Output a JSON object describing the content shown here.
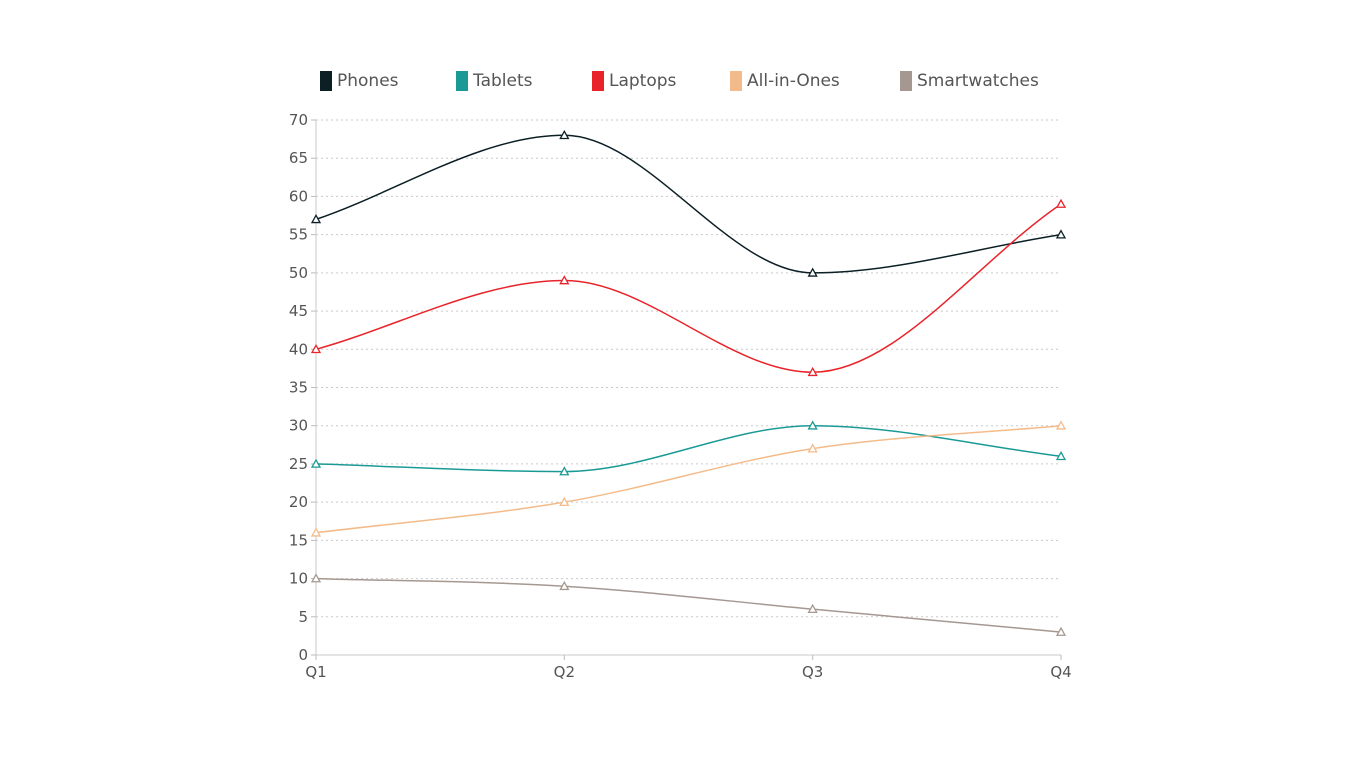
{
  "chart_data": {
    "type": "line",
    "categories": [
      "Q1",
      "Q2",
      "Q3",
      "Q4"
    ],
    "ylim": [
      0,
      70
    ],
    "yticks": [
      0,
      5,
      10,
      15,
      20,
      25,
      30,
      35,
      40,
      45,
      50,
      55,
      60,
      65,
      70
    ],
    "grid": true,
    "legend_position": "top",
    "marker": "triangle",
    "curve": "smooth",
    "series": [
      {
        "name": "Phones",
        "color": "#0b1f24",
        "values": [
          57,
          68,
          50,
          55
        ]
      },
      {
        "name": "Tablets",
        "color": "#1a9a96",
        "values": [
          25,
          24,
          30,
          26
        ]
      },
      {
        "name": "Laptops",
        "color": "#e8242a",
        "values": [
          40,
          49,
          37,
          59
        ]
      },
      {
        "name": "All-in-Ones",
        "color": "#f4bb8a",
        "values": [
          16,
          20,
          27,
          30
        ]
      },
      {
        "name": "Smartwatches",
        "color": "#a59891",
        "values": [
          10,
          9,
          6,
          3
        ]
      }
    ],
    "title": "",
    "xlabel": "",
    "ylabel": ""
  }
}
